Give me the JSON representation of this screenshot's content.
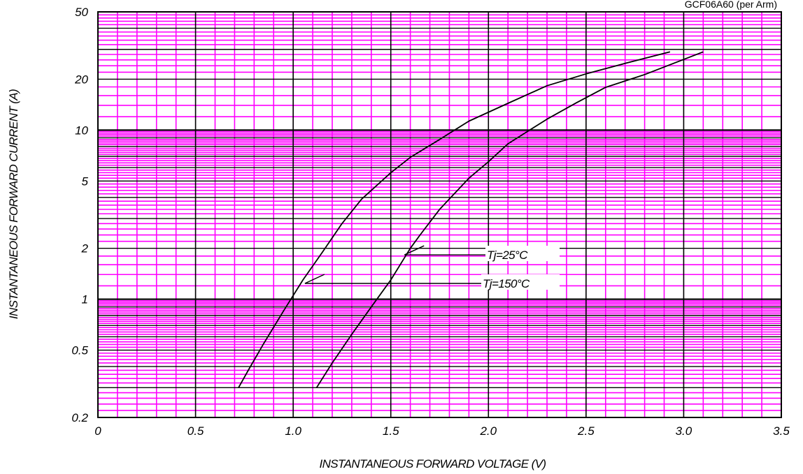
{
  "chart_data": {
    "type": "line",
    "title": "",
    "reference_label": "GCF06A60 (per Arm)",
    "xlabel": "INSTANTANEOUS FORWARD VOLTAGE (V)",
    "ylabel": "INSTANTANEOUS FORWARD CURRENT (A)",
    "x_scale": "linear",
    "y_scale": "log",
    "xlim": [
      0,
      3.5
    ],
    "ylim": [
      0.2,
      50
    ],
    "x_ticks": [
      0,
      0.5,
      1.0,
      1.5,
      2.0,
      2.5,
      3.0,
      3.5
    ],
    "x_tick_labels": [
      "0",
      "0.5",
      "1.0",
      "1.5",
      "2.0",
      "2.5",
      "3.0",
      "3.5"
    ],
    "y_ticks": [
      0.2,
      0.5,
      1,
      2,
      5,
      10,
      20,
      50
    ],
    "y_tick_labels": [
      "0.2",
      "0.5",
      "1",
      "2",
      "5",
      "10",
      "20",
      "50"
    ],
    "grid": true,
    "colors": {
      "grid_minor": "#ff00ff",
      "grid_major": "#000000",
      "curve": "#000000",
      "background": "#ffffff"
    },
    "series": [
      {
        "label": "Tj=150°C",
        "points": [
          [
            0.72,
            0.3
          ],
          [
            0.77,
            0.38
          ],
          [
            0.85,
            0.55
          ],
          [
            0.95,
            0.85
          ],
          [
            1.05,
            1.3
          ],
          [
            1.15,
            1.9
          ],
          [
            1.25,
            2.8
          ],
          [
            1.35,
            3.9
          ],
          [
            1.5,
            5.6
          ],
          [
            1.6,
            6.9
          ],
          [
            1.75,
            8.8
          ],
          [
            1.9,
            11.3
          ],
          [
            2.1,
            14.4
          ],
          [
            2.3,
            18.3
          ],
          [
            2.5,
            21.5
          ],
          [
            2.7,
            24.8
          ],
          [
            2.93,
            29.0
          ]
        ]
      },
      {
        "label": "Tj=25°C",
        "points": [
          [
            1.12,
            0.3
          ],
          [
            1.2,
            0.42
          ],
          [
            1.3,
            0.62
          ],
          [
            1.4,
            0.9
          ],
          [
            1.5,
            1.3
          ],
          [
            1.6,
            2.0
          ],
          [
            1.65,
            2.4
          ],
          [
            1.75,
            3.4
          ],
          [
            1.9,
            5.2
          ],
          [
            2.0,
            6.5
          ],
          [
            2.1,
            8.3
          ],
          [
            2.3,
            11.6
          ],
          [
            2.45,
            14.5
          ],
          [
            2.6,
            17.9
          ],
          [
            2.8,
            21.3
          ],
          [
            3.1,
            29.0
          ]
        ]
      }
    ],
    "annotations": [
      {
        "text": "Tj=25°C",
        "x": 2.0,
        "y": 1.83,
        "points_to": [
          1.57,
          1.83
        ]
      },
      {
        "text": "Tj=150°C",
        "x": 1.91,
        "y": 1.24,
        "points_to": [
          1.06,
          1.24
        ]
      }
    ]
  }
}
